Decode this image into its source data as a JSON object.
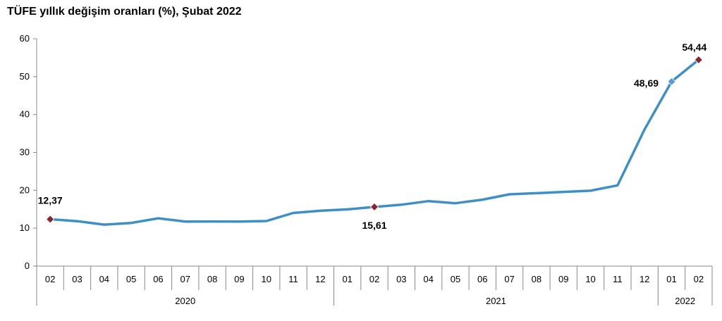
{
  "chart_data": {
    "type": "line",
    "title": "TÜFE yıllık değişim oranları (%), Şubat 2022",
    "xlabel": "",
    "ylabel": "",
    "ylim": [
      0,
      60
    ],
    "yticks": [
      0,
      10,
      20,
      30,
      40,
      50,
      60
    ],
    "grid": false,
    "categories": [
      "02",
      "03",
      "04",
      "05",
      "06",
      "07",
      "08",
      "09",
      "10",
      "11",
      "12",
      "01",
      "02",
      "03",
      "04",
      "05",
      "06",
      "07",
      "08",
      "09",
      "10",
      "11",
      "12",
      "01",
      "02"
    ],
    "year_groups": [
      {
        "label": "2020",
        "start": 0,
        "end": 10
      },
      {
        "label": "2021",
        "start": 11,
        "end": 22
      },
      {
        "label": "2022",
        "start": 23,
        "end": 24
      }
    ],
    "series": [
      {
        "color": "#3d8fc6",
        "values": [
          12.37,
          11.86,
          10.94,
          11.39,
          12.62,
          11.76,
          11.77,
          11.75,
          11.89,
          14.03,
          14.6,
          14.97,
          15.61,
          16.19,
          17.14,
          16.59,
          17.53,
          18.95,
          19.25,
          19.58,
          19.89,
          21.31,
          36.08,
          48.69,
          54.44
        ]
      }
    ],
    "annotations": [
      {
        "index": 0,
        "text": "12,37",
        "marker_color": "#8b2331"
      },
      {
        "index": 12,
        "text": "15,61",
        "marker_color": "#8b2331"
      },
      {
        "index": 23,
        "text": "48,69",
        "marker_color": "#5b9bd5"
      },
      {
        "index": 24,
        "text": "54,44",
        "marker_color": "#8b2331"
      }
    ]
  }
}
